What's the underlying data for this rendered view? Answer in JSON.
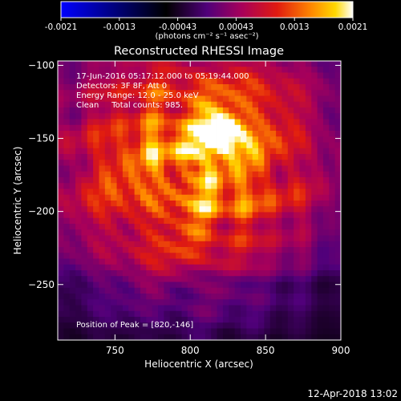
{
  "colorbar": {
    "tick_labels": [
      "-0.0021",
      "-0.0013",
      "-0.00043",
      "0.00043",
      "0.0013",
      "0.0021"
    ],
    "units_label": "(photons cm⁻² s⁻¹ asec⁻²)",
    "colormap": [
      "#0000ff",
      "#000000",
      "#50007a",
      "#a8005a",
      "#e01a10",
      "#ff8a00",
      "#ffd800",
      "#ffffff"
    ]
  },
  "chart_data": {
    "type": "heatmap",
    "title": "Reconstructed RHESSI Image",
    "xlabel": "Heliocentric X (arcsec)",
    "ylabel": "Heliocentric Y (arcsec)",
    "xlim": [
      712,
      900
    ],
    "ylim": [
      -288,
      -97
    ],
    "xticks": [
      750,
      800,
      850,
      900
    ],
    "yticks": [
      -100,
      -150,
      -200,
      -250
    ],
    "value_range": [
      -0.0021,
      0.0021
    ],
    "peak": [
      820,
      -146
    ],
    "annotations": {
      "time": "17-Jun-2016 05:17:12.000 to 05:19:44.000",
      "detectors": "Detectors: 3F 8F, Att 0",
      "energy": "Energy Range: 12.0 - 25.0 keV",
      "method": "Clean     Total counts: 985.",
      "peak_text": "Position of Peak = [820,-146]"
    }
  },
  "footer": {
    "timestamp": "12-Apr-2018 13:02"
  }
}
